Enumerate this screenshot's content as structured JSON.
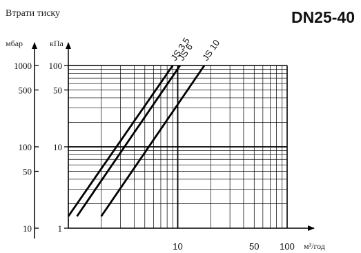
{
  "chart_data": {
    "type": "line",
    "title": "Втрати тиску",
    "product": "DN25-40",
    "xlabel": "м³/год",
    "ylabel_outer": "мбар",
    "ylabel_inner": "кПа",
    "x_scale": "log",
    "y_scale": "log",
    "xlim": [
      1,
      100
    ],
    "ylim_kpa": [
      1,
      100
    ],
    "ylim_mbar": [
      10,
      1000
    ],
    "x_ticks": [
      {
        "value": 10,
        "label": "10"
      },
      {
        "value": 50,
        "label": "50"
      },
      {
        "value": 100,
        "label": "100"
      }
    ],
    "y_ticks_kpa": [
      {
        "value": 100,
        "label": "100"
      },
      {
        "value": 50,
        "label": "50"
      },
      {
        "value": 10,
        "label": "10"
      },
      {
        "value": 1,
        "label": "1"
      }
    ],
    "y_ticks_mbar": [
      {
        "value": 1000,
        "label": "1000"
      },
      {
        "value": 500,
        "label": "500"
      },
      {
        "value": 100,
        "label": "100"
      },
      {
        "value": 50,
        "label": "50"
      },
      {
        "value": 10,
        "label": "10"
      }
    ],
    "grid": true,
    "series": [
      {
        "name": "JS 3,5",
        "x": [
          1.0,
          9.0
        ],
        "y": [
          1.4,
          100
        ]
      },
      {
        "name": "JS 6",
        "x": [
          1.2,
          10.5
        ],
        "y": [
          1.4,
          100
        ]
      },
      {
        "name": "JS 10",
        "x": [
          2.0,
          17.5
        ],
        "y": [
          1.4,
          100
        ]
      }
    ]
  }
}
